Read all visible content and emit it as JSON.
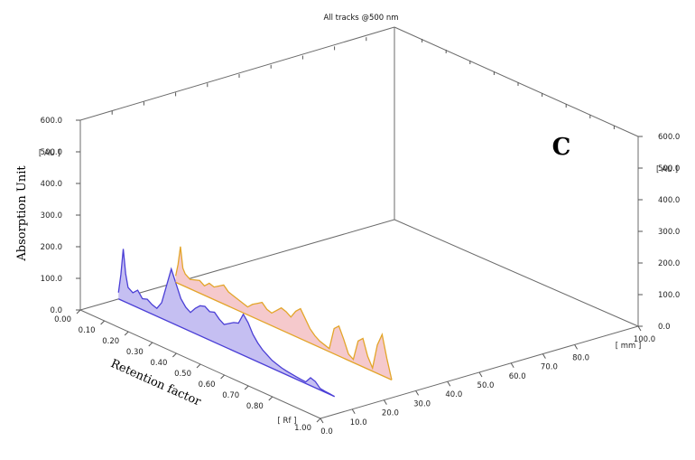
{
  "chart_data": {
    "type": "line",
    "title": "All tracks @500 nm",
    "panel_label": "C",
    "ylabel": "Absorption Unit",
    "xlabel": "Retention factor",
    "x_unit": "[ Rf ]",
    "y_unit": "[ AU ]",
    "track_unit": "[ mm ]",
    "xlim": [
      0.0,
      1.0
    ],
    "ylim": [
      0.0,
      600.0
    ],
    "track_lim": [
      0.0,
      100.0
    ],
    "x_ticks": [
      "0.00",
      "0.10",
      "0.20",
      "0.30",
      "0.40",
      "0.50",
      "0.60",
      "0.70",
      "0.80",
      "1.00"
    ],
    "y_ticks": [
      "0.0",
      "100.0",
      "200.0",
      "300.0",
      "400.0",
      "500.0",
      "600.0"
    ],
    "track_ticks": [
      "0.0",
      "10.0",
      "20.0",
      "30.0",
      "40.0",
      "50.0",
      "60.0",
      "70.0",
      "80.0",
      "100.0"
    ],
    "series": [
      {
        "track_mm": 12,
        "color": "#4b3fd6",
        "fill": "#c5bff2",
        "x": [
          0.0,
          0.01,
          0.02,
          0.03,
          0.04,
          0.06,
          0.08,
          0.1,
          0.12,
          0.14,
          0.16,
          0.18,
          0.2,
          0.22,
          0.24,
          0.26,
          0.28,
          0.3,
          0.32,
          0.34,
          0.36,
          0.38,
          0.4,
          0.42,
          0.44,
          0.46,
          0.48,
          0.5,
          0.52,
          0.54,
          0.56,
          0.58,
          0.6,
          0.62,
          0.64,
          0.66,
          0.68,
          0.7,
          0.72,
          0.74,
          0.76,
          0.78,
          0.8,
          0.82,
          0.84,
          0.86,
          0.88,
          0.9
        ],
        "y": [
          20,
          80,
          165,
          90,
          50,
          40,
          55,
          35,
          40,
          30,
          25,
          50,
          110,
          170,
          130,
          90,
          70,
          60,
          80,
          95,
          100,
          90,
          95,
          80,
          70,
          80,
          90,
          95,
          130,
          110,
          80,
          60,
          45,
          35,
          25,
          20,
          15,
          12,
          10,
          8,
          6,
          5,
          25,
          20,
          5,
          3,
          2,
          0
        ]
      },
      {
        "track_mm": 30,
        "color": "#e3a52a",
        "fill": "#f5c9cc",
        "x": [
          0.0,
          0.01,
          0.02,
          0.03,
          0.04,
          0.06,
          0.08,
          0.1,
          0.12,
          0.14,
          0.16,
          0.18,
          0.2,
          0.22,
          0.24,
          0.26,
          0.28,
          0.3,
          0.32,
          0.34,
          0.36,
          0.38,
          0.4,
          0.42,
          0.44,
          0.46,
          0.48,
          0.5,
          0.52,
          0.54,
          0.56,
          0.58,
          0.6,
          0.62,
          0.64,
          0.66,
          0.68,
          0.7,
          0.72,
          0.74,
          0.76,
          0.78,
          0.8,
          0.82,
          0.84,
          0.86,
          0.88,
          0.9
        ],
        "y": [
          20,
          60,
          120,
          55,
          40,
          30,
          35,
          40,
          30,
          45,
          40,
          50,
          60,
          45,
          40,
          35,
          30,
          25,
          40,
          50,
          60,
          45,
          40,
          55,
          70,
          65,
          55,
          80,
          95,
          70,
          45,
          30,
          20,
          15,
          10,
          80,
          95,
          60,
          20,
          10,
          75,
          90,
          40,
          10,
          90,
          130,
          60,
          0
        ]
      }
    ]
  }
}
